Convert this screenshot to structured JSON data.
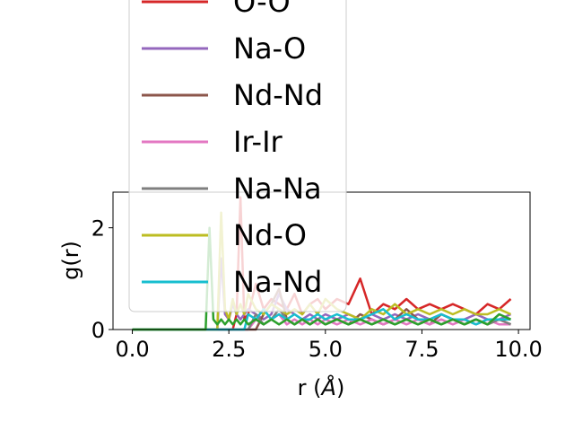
{
  "chart_data": {
    "type": "line",
    "xlabel": "r (",
    "xlabel_unit": "Å",
    "xlabel_close": ")",
    "ylabel": "g(r)",
    "xlim": [
      -0.5,
      10.3
    ],
    "ylim": [
      0,
      2.7
    ],
    "xticks": [
      0.0,
      2.5,
      5.0,
      7.5,
      10.0
    ],
    "xtick_labels": [
      "0.0",
      "2.5",
      "5.0",
      "7.5",
      "10.0"
    ],
    "yticks": [
      0,
      2
    ],
    "ytick_labels": [
      "0",
      "2"
    ],
    "grid": false,
    "legend_position": "upper-left, extending above the axes",
    "x": [
      0.0,
      1.0,
      1.8,
      1.9,
      2.0,
      2.1,
      2.2,
      2.3,
      2.4,
      2.5,
      2.6,
      2.7,
      2.8,
      2.9,
      3.0,
      3.2,
      3.4,
      3.6,
      3.8,
      4.0,
      4.2,
      4.4,
      4.6,
      4.8,
      5.0,
      5.3,
      5.6,
      5.9,
      6.2,
      6.5,
      6.8,
      7.1,
      7.4,
      7.7,
      8.0,
      8.3,
      8.6,
      8.9,
      9.2,
      9.5,
      9.8
    ],
    "series": [
      {
        "name": "O-O",
        "color": "#d62728",
        "values": [
          0,
          0,
          0,
          0,
          0,
          0,
          0,
          0,
          0,
          0,
          0,
          0.3,
          2.6,
          0.2,
          0.3,
          0.9,
          0.4,
          0.6,
          0.5,
          0.4,
          0.7,
          0.3,
          0.5,
          0.6,
          0.4,
          0.6,
          0.5,
          1.0,
          0.3,
          0.5,
          0.4,
          0.6,
          0.4,
          0.5,
          0.4,
          0.5,
          0.4,
          0.3,
          0.5,
          0.4,
          0.6
        ]
      },
      {
        "name": "Na-O",
        "color": "#9467bd",
        "values": [
          0,
          0,
          0,
          0,
          0,
          0,
          0,
          1.4,
          0.3,
          0.2,
          0.5,
          0.3,
          0.2,
          0.3,
          0.4,
          0.3,
          0.2,
          0.3,
          0.7,
          0.4,
          0.3,
          0.2,
          0.3,
          0.2,
          0.3,
          0.2,
          0.3,
          0.2,
          0.3,
          0.2,
          0.3,
          0.2,
          0.3,
          0.2,
          0.3,
          0.2,
          0.2,
          0.3,
          0.2,
          0.2,
          0.3
        ]
      },
      {
        "name": "Nd-Nd",
        "color": "#8c564b",
        "values": [
          0,
          0,
          0,
          0,
          0,
          0,
          0,
          0,
          0,
          0,
          0,
          0,
          0,
          0,
          0,
          0,
          0.3,
          0.5,
          0.8,
          0.2,
          0.1,
          0.2,
          0.1,
          0.2,
          0.1,
          0.2,
          0.1,
          0.3,
          0.2,
          0.1,
          0.2,
          0.4,
          0.2,
          0.1,
          0.3,
          0.2,
          0.1,
          0.2,
          0.1,
          0.2,
          0.1
        ]
      },
      {
        "name": "Ir-Ir",
        "color": "#e377c2",
        "values": [
          0,
          0,
          0,
          0,
          0,
          0,
          0,
          0,
          0,
          0,
          0,
          0,
          0,
          0,
          0,
          0.2,
          0.1,
          0.2,
          0.3,
          0.1,
          0.2,
          0.1,
          0.2,
          0.1,
          0.2,
          0.1,
          0.2,
          0.1,
          0.2,
          0.1,
          0.2,
          0.1,
          0.2,
          0.1,
          0.2,
          0.1,
          0.2,
          0.1,
          0.2,
          0.1,
          0.1
        ]
      },
      {
        "name": "Na-Na",
        "color": "#7f7f7f",
        "values": [
          0,
          0,
          0,
          0,
          0,
          0,
          0,
          0,
          0,
          0,
          0,
          0,
          0,
          0,
          0,
          0.3,
          0.1,
          0.2,
          0.4,
          0.2,
          0.1,
          0.2,
          0.1,
          0.2,
          0.1,
          0.2,
          0.1,
          0.2,
          0.1,
          0.2,
          0.1,
          0.2,
          0.1,
          0.2,
          0.1,
          0.2,
          0.1,
          0.2,
          0.1,
          0.2,
          0.1
        ]
      },
      {
        "name": "Nd-O",
        "color": "#bcbd22",
        "values": [
          0,
          0,
          0,
          0,
          0,
          0,
          0,
          2.3,
          0.4,
          0.2,
          0.6,
          0.3,
          0.5,
          0.3,
          0.7,
          0.4,
          0.3,
          0.5,
          0.4,
          0.3,
          0.4,
          0.3,
          0.5,
          0.3,
          0.6,
          0.4,
          0.3,
          0.2,
          0.4,
          0.3,
          0.5,
          0.3,
          0.4,
          0.3,
          0.4,
          0.3,
          0.4,
          0.3,
          0.3,
          0.4,
          0.3
        ]
      },
      {
        "name": "Na-Nd",
        "color": "#17becf",
        "values": [
          0,
          0,
          0,
          0,
          0,
          0,
          0,
          0,
          0,
          0,
          0,
          0,
          0,
          0,
          0.3,
          0.2,
          0.4,
          0.2,
          0.3,
          0.2,
          0.3,
          0.2,
          0.2,
          0.3,
          0.2,
          0.3,
          0.2,
          0.2,
          0.3,
          0.4,
          0.2,
          0.3,
          0.2,
          0.2,
          0.3,
          0.2,
          0.2,
          0.1,
          0.2,
          0.2,
          0.2
        ]
      },
      {
        "name": "",
        "color": "#2ca02c",
        "values": [
          0,
          0,
          0,
          0,
          2.0,
          0.2,
          0.1,
          0.2,
          0.1,
          0.2,
          0.1,
          0.2,
          0.1,
          0.2,
          0.1,
          0.2,
          0.1,
          0.2,
          0.1,
          0.2,
          0.1,
          0.2,
          0.1,
          0.2,
          0.1,
          0.2,
          0.1,
          0.2,
          0.1,
          0.2,
          0.1,
          0.2,
          0.1,
          0.2,
          0.1,
          0.2,
          0.1,
          0.2,
          0.1,
          0.3,
          0.2
        ]
      }
    ],
    "legend_visible_entries": [
      "O-O",
      "Na-O",
      "Nd-Nd",
      "Ir-Ir",
      "Na-Na",
      "Nd-O",
      "Na-Nd"
    ]
  }
}
